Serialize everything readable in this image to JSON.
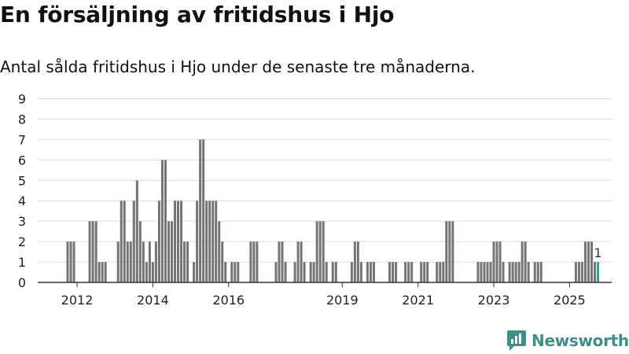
{
  "title": "En försäljning av fritidshus i Hjo",
  "subtitle": "Antal sålda fritidshus i Hjo under de senaste tre månaderna.",
  "brand": "Newsworthy",
  "colors": {
    "bar": "#757575",
    "highlight": "#2ca09a",
    "grid": "#dddddd",
    "logo": "#3f8e8a"
  },
  "chart_data": {
    "type": "bar",
    "title": "",
    "ylim": [
      0,
      9
    ],
    "y_ticks": [
      0,
      1,
      2,
      3,
      4,
      5,
      6,
      7,
      8,
      9
    ],
    "x_ticks": [
      "2012",
      "2014",
      "2016",
      "2019",
      "2021",
      "2023",
      "2025"
    ],
    "grid": true,
    "highlight_label": "1",
    "series": [
      {
        "values": [
          {
            "x": "2011-10",
            "y": 2
          },
          {
            "x": "2011-11",
            "y": 2
          },
          {
            "x": "2011-12",
            "y": 2
          },
          {
            "x": "2012-05",
            "y": 3
          },
          {
            "x": "2012-06",
            "y": 3
          },
          {
            "x": "2012-07",
            "y": 3
          },
          {
            "x": "2012-08",
            "y": 1
          },
          {
            "x": "2012-09",
            "y": 1
          },
          {
            "x": "2012-10",
            "y": 1
          },
          {
            "x": "2013-02",
            "y": 2
          },
          {
            "x": "2013-03",
            "y": 4
          },
          {
            "x": "2013-04",
            "y": 4
          },
          {
            "x": "2013-05",
            "y": 2
          },
          {
            "x": "2013-06",
            "y": 2
          },
          {
            "x": "2013-07",
            "y": 4
          },
          {
            "x": "2013-08",
            "y": 5
          },
          {
            "x": "2013-09",
            "y": 3
          },
          {
            "x": "2013-10",
            "y": 2
          },
          {
            "x": "2013-11",
            "y": 1
          },
          {
            "x": "2013-12",
            "y": 2
          },
          {
            "x": "2014-01",
            "y": 1
          },
          {
            "x": "2014-02",
            "y": 2
          },
          {
            "x": "2014-03",
            "y": 4
          },
          {
            "x": "2014-04",
            "y": 6
          },
          {
            "x": "2014-05",
            "y": 6
          },
          {
            "x": "2014-06",
            "y": 3
          },
          {
            "x": "2014-07",
            "y": 3
          },
          {
            "x": "2014-08",
            "y": 4
          },
          {
            "x": "2014-09",
            "y": 4
          },
          {
            "x": "2014-10",
            "y": 4
          },
          {
            "x": "2014-11",
            "y": 2
          },
          {
            "x": "2014-12",
            "y": 2
          },
          {
            "x": "2015-02",
            "y": 1
          },
          {
            "x": "2015-03",
            "y": 4
          },
          {
            "x": "2015-04",
            "y": 7
          },
          {
            "x": "2015-05",
            "y": 7
          },
          {
            "x": "2015-06",
            "y": 4
          },
          {
            "x": "2015-07",
            "y": 4
          },
          {
            "x": "2015-08",
            "y": 4
          },
          {
            "x": "2015-09",
            "y": 4
          },
          {
            "x": "2015-10",
            "y": 3
          },
          {
            "x": "2015-11",
            "y": 2
          },
          {
            "x": "2015-12",
            "y": 1
          },
          {
            "x": "2016-02",
            "y": 1
          },
          {
            "x": "2016-03",
            "y": 1
          },
          {
            "x": "2016-04",
            "y": 1
          },
          {
            "x": "2016-08",
            "y": 2
          },
          {
            "x": "2016-09",
            "y": 2
          },
          {
            "x": "2016-10",
            "y": 2
          },
          {
            "x": "2017-04",
            "y": 1
          },
          {
            "x": "2017-05",
            "y": 2
          },
          {
            "x": "2017-06",
            "y": 2
          },
          {
            "x": "2017-07",
            "y": 1
          },
          {
            "x": "2017-10",
            "y": 1
          },
          {
            "x": "2017-11",
            "y": 2
          },
          {
            "x": "2017-12",
            "y": 2
          },
          {
            "x": "2018-01",
            "y": 1
          },
          {
            "x": "2018-03",
            "y": 1
          },
          {
            "x": "2018-04",
            "y": 1
          },
          {
            "x": "2018-05",
            "y": 3
          },
          {
            "x": "2018-06",
            "y": 3
          },
          {
            "x": "2018-07",
            "y": 3
          },
          {
            "x": "2018-08",
            "y": 1
          },
          {
            "x": "2018-10",
            "y": 1
          },
          {
            "x": "2018-11",
            "y": 1
          },
          {
            "x": "2019-04",
            "y": 1
          },
          {
            "x": "2019-05",
            "y": 2
          },
          {
            "x": "2019-06",
            "y": 2
          },
          {
            "x": "2019-07",
            "y": 1
          },
          {
            "x": "2019-09",
            "y": 1
          },
          {
            "x": "2019-10",
            "y": 1
          },
          {
            "x": "2019-11",
            "y": 1
          },
          {
            "x": "2020-04",
            "y": 1
          },
          {
            "x": "2020-05",
            "y": 1
          },
          {
            "x": "2020-06",
            "y": 1
          },
          {
            "x": "2020-09",
            "y": 1
          },
          {
            "x": "2020-10",
            "y": 1
          },
          {
            "x": "2020-11",
            "y": 1
          },
          {
            "x": "2021-02",
            "y": 1
          },
          {
            "x": "2021-03",
            "y": 1
          },
          {
            "x": "2021-04",
            "y": 1
          },
          {
            "x": "2021-07",
            "y": 1
          },
          {
            "x": "2021-08",
            "y": 1
          },
          {
            "x": "2021-09",
            "y": 1
          },
          {
            "x": "2021-10",
            "y": 3
          },
          {
            "x": "2021-11",
            "y": 3
          },
          {
            "x": "2021-12",
            "y": 3
          },
          {
            "x": "2022-08",
            "y": 1
          },
          {
            "x": "2022-09",
            "y": 1
          },
          {
            "x": "2022-10",
            "y": 1
          },
          {
            "x": "2022-11",
            "y": 1
          },
          {
            "x": "2022-12",
            "y": 1
          },
          {
            "x": "2023-01",
            "y": 2
          },
          {
            "x": "2023-02",
            "y": 2
          },
          {
            "x": "2023-03",
            "y": 2
          },
          {
            "x": "2023-04",
            "y": 1
          },
          {
            "x": "2023-06",
            "y": 1
          },
          {
            "x": "2023-07",
            "y": 1
          },
          {
            "x": "2023-08",
            "y": 1
          },
          {
            "x": "2023-09",
            "y": 1
          },
          {
            "x": "2023-10",
            "y": 2
          },
          {
            "x": "2023-11",
            "y": 2
          },
          {
            "x": "2023-12",
            "y": 1
          },
          {
            "x": "2024-02",
            "y": 1
          },
          {
            "x": "2024-03",
            "y": 1
          },
          {
            "x": "2024-04",
            "y": 1
          },
          {
            "x": "2025-03",
            "y": 1
          },
          {
            "x": "2025-04",
            "y": 1
          },
          {
            "x": "2025-05",
            "y": 1
          },
          {
            "x": "2025-06",
            "y": 2
          },
          {
            "x": "2025-07",
            "y": 2
          },
          {
            "x": "2025-08",
            "y": 2
          },
          {
            "x": "2025-09",
            "y": 1
          },
          {
            "x": "2025-10",
            "y": 1,
            "highlight": true
          }
        ]
      }
    ]
  }
}
